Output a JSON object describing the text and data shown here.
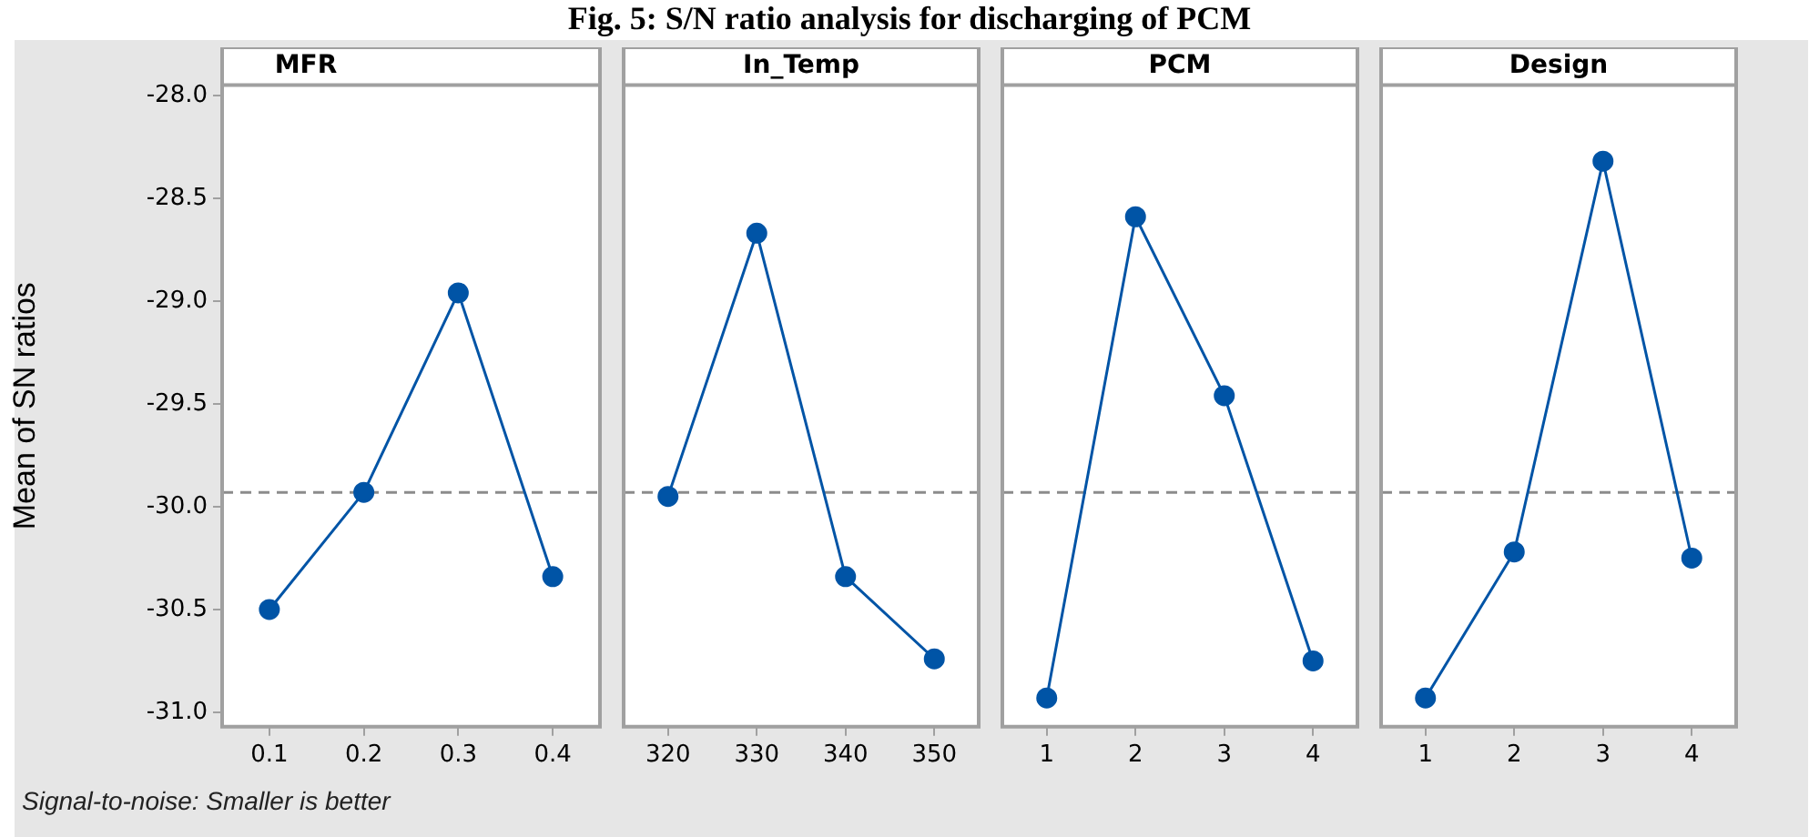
{
  "chart_data": [
    {
      "type": "line",
      "title": "MFR",
      "ylabel": "Mean of SN ratios",
      "categories": [
        "0.1",
        "0.2",
        "0.3",
        "0.4"
      ],
      "values": [
        -30.5,
        -29.93,
        -28.96,
        -30.34
      ],
      "color": "#0054a6",
      "marker": "circle",
      "grid": false,
      "ylim": [
        -31.07,
        -27.95
      ],
      "yticks": [
        {
          "value": -31,
          "label": "-31.0"
        },
        -30.5,
        {
          "value": -30,
          "label": "-30.0"
        },
        -29.5,
        {
          "value": -29,
          "label": "-29.0"
        },
        -28.5,
        {
          "value": -28,
          "label": "-28.0"
        }
      ],
      "ref_lines": [
        {
          "axis": "y",
          "value": -29.93,
          "color": "#8c8c8c",
          "line_style": "dashed"
        }
      ],
      "annotations": [
        "Fig. 5: S/N ratio analysis for discharging of PCM",
        "Signal-to-noise: Smaller is better"
      ]
    },
    {
      "type": "line",
      "title": "In_Temp",
      "categories": [
        "320",
        "330",
        "340",
        "350"
      ],
      "values": [
        -29.95,
        -28.67,
        -30.34,
        -30.74
      ],
      "color": "#0054a6",
      "marker": "circle",
      "grid": false,
      "tick_labels": "x",
      "ylim": [
        -31.07,
        -27.95
      ],
      "ref_lines": [
        {
          "axis": "y",
          "value": -29.93,
          "color": "#8c8c8c",
          "line_style": "dashed"
        }
      ]
    },
    {
      "type": "line",
      "title": "PCM",
      "categories": [
        "1",
        "2",
        "3",
        "4"
      ],
      "values": [
        -30.93,
        -28.59,
        -29.46,
        -30.75
      ],
      "color": "#0054a6",
      "marker": "circle",
      "grid": false,
      "tick_labels": "x",
      "ylim": [
        -31.07,
        -27.95
      ],
      "ref_lines": [
        {
          "axis": "y",
          "value": -29.93,
          "color": "#8c8c8c",
          "line_style": "dashed"
        }
      ]
    },
    {
      "type": "line",
      "title": "Design",
      "categories": [
        "1",
        "2",
        "3",
        "4"
      ],
      "values": [
        -30.93,
        -30.22,
        -28.32,
        -30.25
      ],
      "color": "#0054a6",
      "marker": "circle",
      "grid": false,
      "tick_labels": "x",
      "ylim": [
        -31.07,
        -27.95
      ],
      "ref_lines": [
        {
          "axis": "y",
          "value": -29.93,
          "color": "#8c8c8c",
          "line_style": "dashed"
        }
      ]
    }
  ]
}
